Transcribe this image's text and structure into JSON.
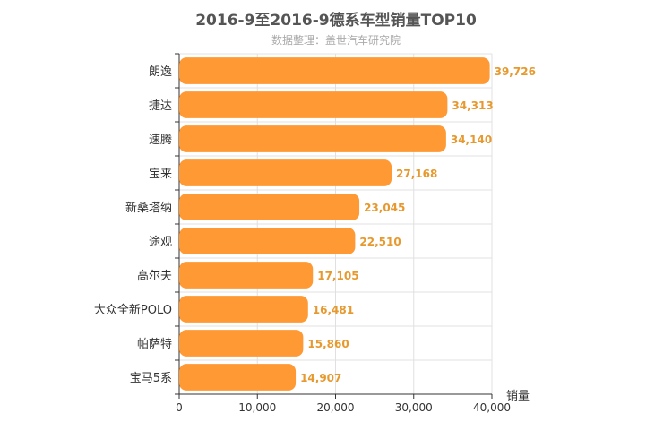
{
  "chart_data": {
    "type": "bar",
    "orientation": "horizontal",
    "title": "2016-9至2016-9德系车型销量TOP10",
    "subtitle": "数据整理：盖世汽车研究院",
    "xlabel": "销量",
    "ylabel": "",
    "categories": [
      "朗逸",
      "捷达",
      "速腾",
      "宝来",
      "新桑塔纳",
      "途观",
      "高尔夫",
      "大众全新POLO",
      "帕萨特",
      "宝马5系"
    ],
    "values": [
      39726,
      34313,
      34140,
      27168,
      23045,
      22510,
      17105,
      16481,
      15860,
      14907
    ],
    "value_labels": [
      "39,726",
      "34,313",
      "34,140",
      "27,168",
      "23,045",
      "22,510",
      "17,105",
      "16,481",
      "15,860",
      "14,907"
    ],
    "xlim": [
      0,
      40000
    ],
    "xticks": [
      0,
      10000,
      20000,
      30000,
      40000
    ],
    "xtick_labels": [
      "0",
      "10,000",
      "20,000",
      "30,000",
      "40,000"
    ],
    "grid": true,
    "bar_color": "#ff9933",
    "label_color": "#e6992e"
  }
}
